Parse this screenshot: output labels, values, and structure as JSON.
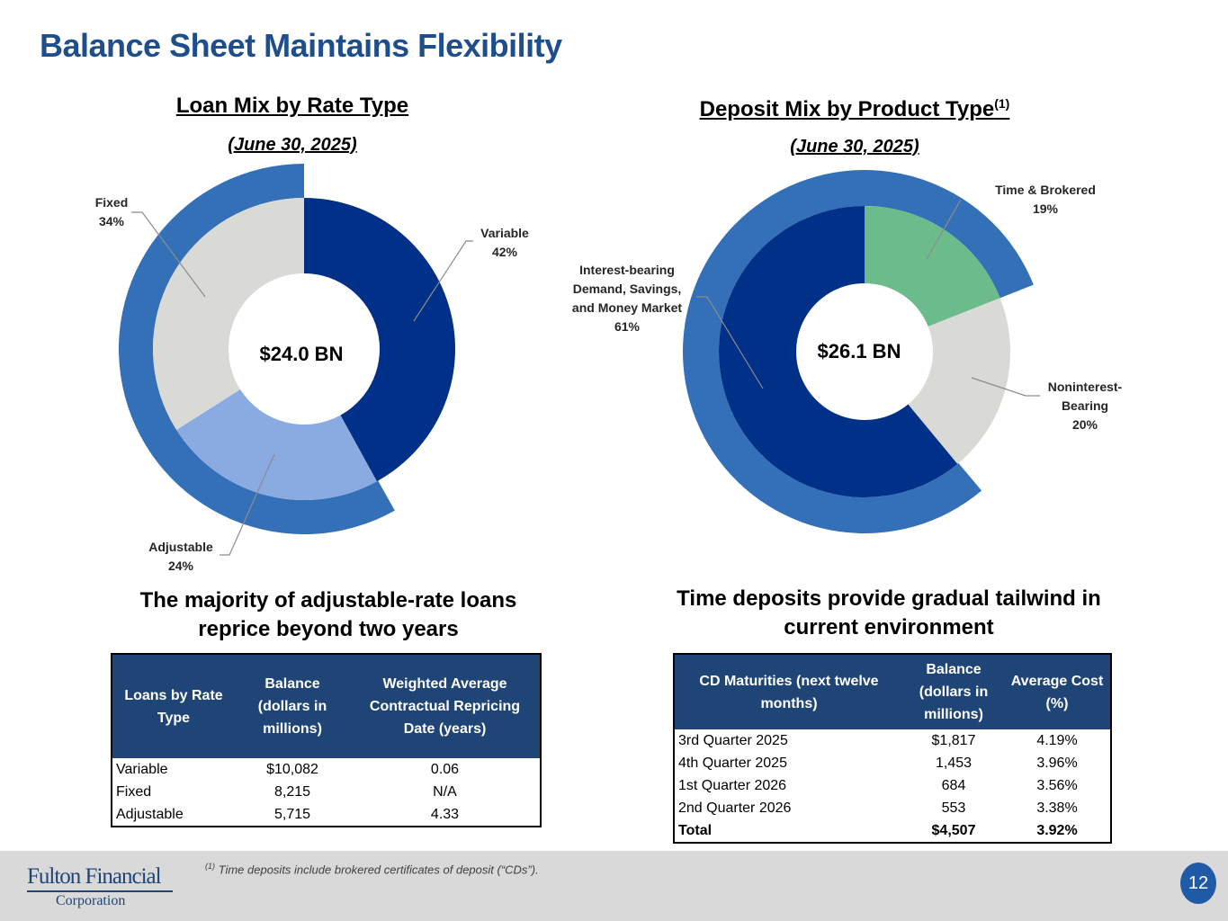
{
  "page": {
    "title": "Balance Sheet Maintains Flexibility",
    "page_number": "12",
    "footnote_marker": "(1)",
    "footnote": "Time deposits include brokered certificates of deposit (“CDs”).",
    "logo": {
      "line1": "Fulton Financial",
      "line2": "Corporation"
    }
  },
  "loan_chart": {
    "title": "Loan Mix by Rate Type",
    "date": "(June 30, 2025)"
  },
  "deposit_chart": {
    "title": "Deposit Mix by Product Type",
    "title_sup": "(1)",
    "date": "(June 30, 2025)"
  },
  "colors": {
    "title_blue": "#1f4e8c",
    "navy": "#003087",
    "light_blue": "#8aaae2",
    "gray": "#d9d9d6",
    "green": "#6bbc8a",
    "outer_ring": "#3370b8",
    "table_header": "#1f4476"
  },
  "chart_data": [
    {
      "type": "pie",
      "title": "Loan Mix by Rate Type",
      "center_label": "$24.0 BN",
      "categories": [
        "Variable",
        "Adjustable",
        "Fixed"
      ],
      "values": [
        42,
        24,
        34
      ],
      "labels": [
        "42%",
        "24%",
        "34%"
      ],
      "outer_ring_category": "Adjustable + Fixed",
      "outer_ring_value": 58
    },
    {
      "type": "pie",
      "title": "Deposit Mix by Product Type",
      "center_label": "$26.1 BN",
      "categories": [
        "Time & Brokered",
        "Noninterest-Bearing",
        "Interest-bearing Demand, Savings, and Money Market"
      ],
      "values": [
        19,
        20,
        61
      ],
      "labels": [
        "19%",
        "20%",
        "61%"
      ],
      "label_lines": [
        [
          "Time & Brokered"
        ],
        [
          "Noninterest-",
          "Bearing"
        ],
        [
          "Interest-bearing",
          "Demand, Savings,",
          "and Money Market"
        ]
      ],
      "outer_ring_category": "Interest-bearing Demand, Savings, and Money Market + Time & Brokered",
      "outer_ring_value": 80
    }
  ],
  "loan_table": {
    "heading_line1": "The majority of adjustable-rate loans",
    "heading_line2": "reprice beyond two years",
    "headers": [
      "Loans by Rate Type",
      "Balance (dollars in millions)",
      "Weighted Average Contractual Repricing Date (years)"
    ],
    "rows": [
      [
        "Variable",
        "$10,082",
        "0.06"
      ],
      [
        "Fixed",
        "8,215",
        "N/A"
      ],
      [
        "Adjustable",
        "5,715",
        "4.33"
      ]
    ]
  },
  "cd_table": {
    "heading_line1": "Time deposits provide gradual tailwind in",
    "heading_line2": "current environment",
    "headers": [
      "CD Maturities (next twelve months)",
      "Balance (dollars in millions)",
      "Average Cost (%)"
    ],
    "rows": [
      [
        "3rd Quarter 2025",
        "$1,817",
        "4.19%"
      ],
      [
        "4th Quarter 2025",
        "1,453",
        "3.96%"
      ],
      [
        "1st Quarter 2026",
        "684",
        "3.56%"
      ],
      [
        "2nd Quarter 2026",
        "553",
        "3.38%"
      ]
    ],
    "total": [
      "Total",
      "$4,507",
      "3.92%"
    ]
  }
}
